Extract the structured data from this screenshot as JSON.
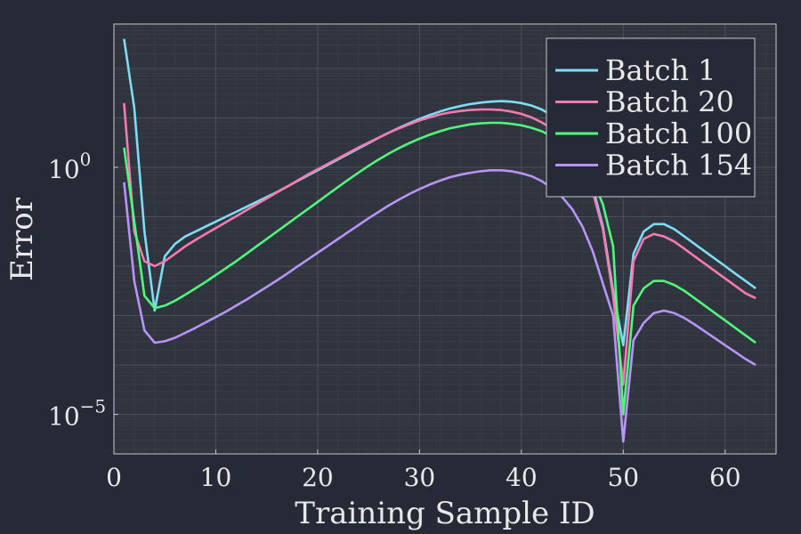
{
  "colors": {
    "background": "#262a36",
    "plot_background": "#30343e",
    "frame": "#c8c8c8",
    "grid_major": "#4c5058",
    "grid_minor": "#3a3e47",
    "text": "#e8e8e8"
  },
  "chart_data": {
    "type": "line",
    "title": "",
    "xlabel": "Training Sample ID",
    "ylabel": "Error",
    "xlim": [
      0,
      65
    ],
    "ylim_log10": [
      -5.8,
      2.9
    ],
    "yscale": "log10",
    "grid": true,
    "legend_position": "top-right",
    "x_ticks": [
      {
        "value": 0,
        "label": "0"
      },
      {
        "value": 10,
        "label": "10"
      },
      {
        "value": 20,
        "label": "20"
      },
      {
        "value": 30,
        "label": "30"
      },
      {
        "value": 40,
        "label": "40"
      },
      {
        "value": 50,
        "label": "50"
      },
      {
        "value": 60,
        "label": "60"
      }
    ],
    "y_ticks": [
      {
        "log10": 0,
        "base": "10",
        "exponent": "0"
      },
      {
        "log10": -5,
        "base": "10",
        "exponent": "−5"
      }
    ],
    "x": [
      1,
      2,
      3,
      4,
      5,
      6,
      7,
      8,
      9,
      10,
      11,
      12,
      13,
      14,
      15,
      16,
      17,
      18,
      19,
      20,
      21,
      22,
      23,
      24,
      25,
      26,
      27,
      28,
      29,
      30,
      31,
      32,
      33,
      34,
      35,
      36,
      37,
      38,
      39,
      40,
      41,
      42,
      43,
      44,
      45,
      46,
      47,
      48,
      49,
      50,
      51,
      52,
      53,
      54,
      55,
      56,
      57,
      58,
      59,
      60,
      61,
      62,
      63
    ],
    "series": [
      {
        "name": "Batch 1",
        "color": "#7fdcf5",
        "log10_values": [
          2.6,
          1.2,
          -1.3,
          -2.9,
          -1.8,
          -1.55,
          -1.4,
          -1.3,
          -1.2,
          -1.1,
          -1.0,
          -0.9,
          -0.8,
          -0.7,
          -0.6,
          -0.5,
          -0.39,
          -0.28,
          -0.17,
          -0.06,
          0.05,
          0.16,
          0.27,
          0.38,
          0.49,
          0.6,
          0.7,
          0.8,
          0.89,
          0.98,
          1.06,
          1.13,
          1.19,
          1.24,
          1.28,
          1.31,
          1.33,
          1.34,
          1.33,
          1.3,
          1.25,
          1.17,
          1.05,
          0.88,
          0.6,
          0.2,
          -0.4,
          -1.2,
          -2.5,
          -3.6,
          -1.75,
          -1.3,
          -1.15,
          -1.15,
          -1.25,
          -1.4,
          -1.55,
          -1.7,
          -1.85,
          -2.0,
          -2.15,
          -2.3,
          -2.45
        ]
      },
      {
        "name": "Batch 20",
        "color": "#f57ab2",
        "log10_values": [
          1.3,
          -1.3,
          -1.9,
          -2.0,
          -1.9,
          -1.75,
          -1.6,
          -1.47,
          -1.35,
          -1.23,
          -1.11,
          -0.99,
          -0.87,
          -0.75,
          -0.63,
          -0.51,
          -0.39,
          -0.27,
          -0.15,
          -0.04,
          0.07,
          0.18,
          0.29,
          0.4,
          0.5,
          0.6,
          0.7,
          0.79,
          0.87,
          0.95,
          1.01,
          1.07,
          1.11,
          1.14,
          1.16,
          1.17,
          1.17,
          1.16,
          1.13,
          1.08,
          1.01,
          0.91,
          0.78,
          0.6,
          0.35,
          0.0,
          -0.5,
          -1.25,
          -2.6,
          -4.4,
          -1.9,
          -1.45,
          -1.35,
          -1.4,
          -1.5,
          -1.65,
          -1.8,
          -1.95,
          -2.1,
          -2.25,
          -2.4,
          -2.55,
          -2.65
        ]
      },
      {
        "name": "Batch 100",
        "color": "#50f77c",
        "log10_values": [
          0.4,
          -1.1,
          -2.6,
          -2.85,
          -2.8,
          -2.7,
          -2.58,
          -2.45,
          -2.32,
          -2.18,
          -2.04,
          -1.9,
          -1.75,
          -1.6,
          -1.45,
          -1.3,
          -1.15,
          -1.0,
          -0.85,
          -0.7,
          -0.55,
          -0.4,
          -0.25,
          -0.11,
          0.03,
          0.16,
          0.28,
          0.39,
          0.49,
          0.58,
          0.66,
          0.73,
          0.79,
          0.83,
          0.87,
          0.89,
          0.9,
          0.9,
          0.88,
          0.85,
          0.8,
          0.73,
          0.63,
          0.5,
          0.32,
          0.08,
          -0.25,
          -0.75,
          -1.6,
          -5.0,
          -2.8,
          -2.45,
          -2.3,
          -2.3,
          -2.38,
          -2.5,
          -2.65,
          -2.8,
          -2.95,
          -3.1,
          -3.25,
          -3.4,
          -3.55
        ]
      },
      {
        "name": "Batch 154",
        "color": "#b994f7",
        "log10_values": [
          -0.3,
          -2.3,
          -3.3,
          -3.55,
          -3.52,
          -3.45,
          -3.35,
          -3.25,
          -3.14,
          -3.03,
          -2.92,
          -2.8,
          -2.68,
          -2.55,
          -2.42,
          -2.29,
          -2.15,
          -2.01,
          -1.87,
          -1.73,
          -1.59,
          -1.45,
          -1.31,
          -1.17,
          -1.03,
          -0.9,
          -0.77,
          -0.65,
          -0.54,
          -0.44,
          -0.35,
          -0.27,
          -0.2,
          -0.15,
          -0.11,
          -0.08,
          -0.06,
          -0.06,
          -0.08,
          -0.12,
          -0.18,
          -0.28,
          -0.42,
          -0.6,
          -0.85,
          -1.2,
          -1.7,
          -2.35,
          -3.0,
          -5.55,
          -3.5,
          -3.15,
          -2.95,
          -2.9,
          -2.95,
          -3.05,
          -3.18,
          -3.32,
          -3.46,
          -3.6,
          -3.74,
          -3.88,
          -4.0
        ]
      }
    ]
  }
}
